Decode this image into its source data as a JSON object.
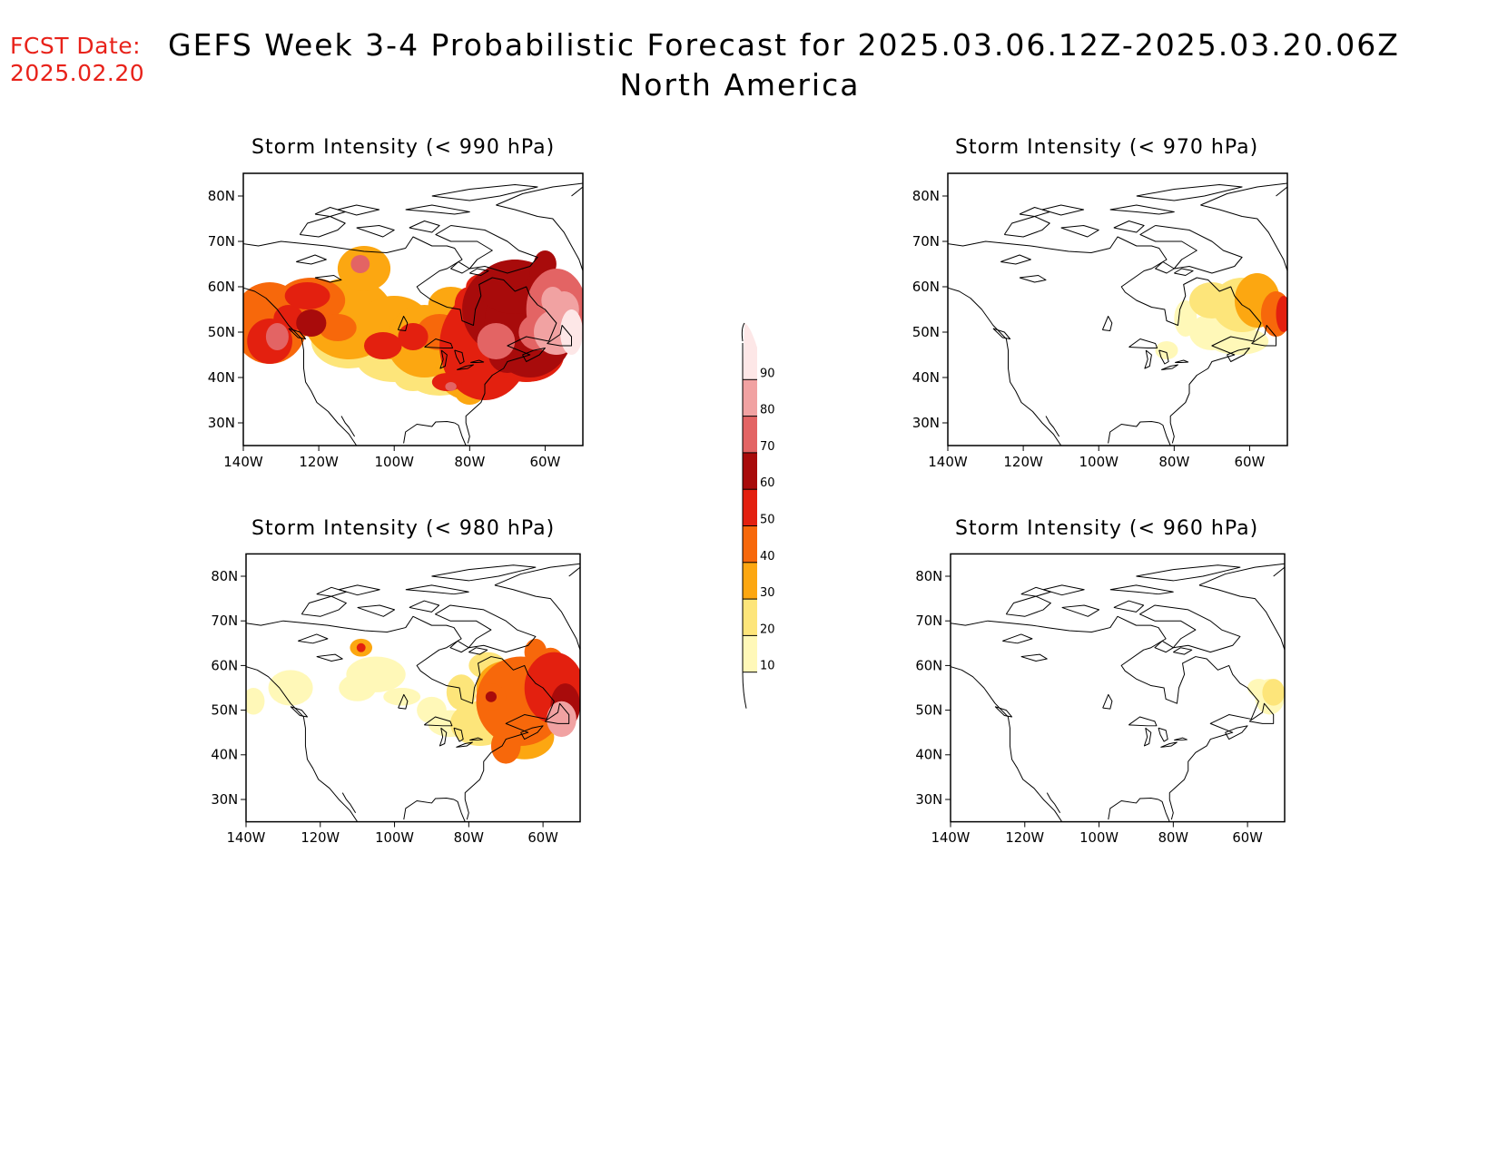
{
  "header": {
    "fcst_label": "FCST Date:",
    "fcst_date": "2025.02.20",
    "title": "GEFS Week 3-4 Probabilistic Forecast for 2025.03.06.12Z-2025.03.20.06Z",
    "subtitle": "North America"
  },
  "axes": {
    "lon_ticks": [
      "140W",
      "120W",
      "100W",
      "80W",
      "60W"
    ],
    "lat_ticks": [
      "80N",
      "70N",
      "60N",
      "50N",
      "40N",
      "30N"
    ]
  },
  "colorbar": {
    "levels": [
      "10",
      "20",
      "30",
      "40",
      "50",
      "60",
      "70",
      "80",
      "90"
    ],
    "colors": [
      "#fff8b8",
      "#fde57a",
      "#fca711",
      "#f7680b",
      "#e3200f",
      "#a80b0b",
      "#e36464",
      "#f1a2a2",
      "#fde7e7"
    ]
  },
  "panels": [
    {
      "id": "p990",
      "title": "Storm Intensity (< 990 hPa)",
      "coverage": "widespread, peak 90"
    },
    {
      "id": "p970",
      "title": "Storm Intensity (< 970 hPa)",
      "coverage": "northeast, peak 50"
    },
    {
      "id": "p980",
      "title": "Storm Intensity (< 980 hPa)",
      "coverage": "east, peak 60"
    },
    {
      "id": "p960",
      "title": "Storm Intensity (< 960 hPa)",
      "coverage": "minimal, peak 20"
    }
  ]
}
